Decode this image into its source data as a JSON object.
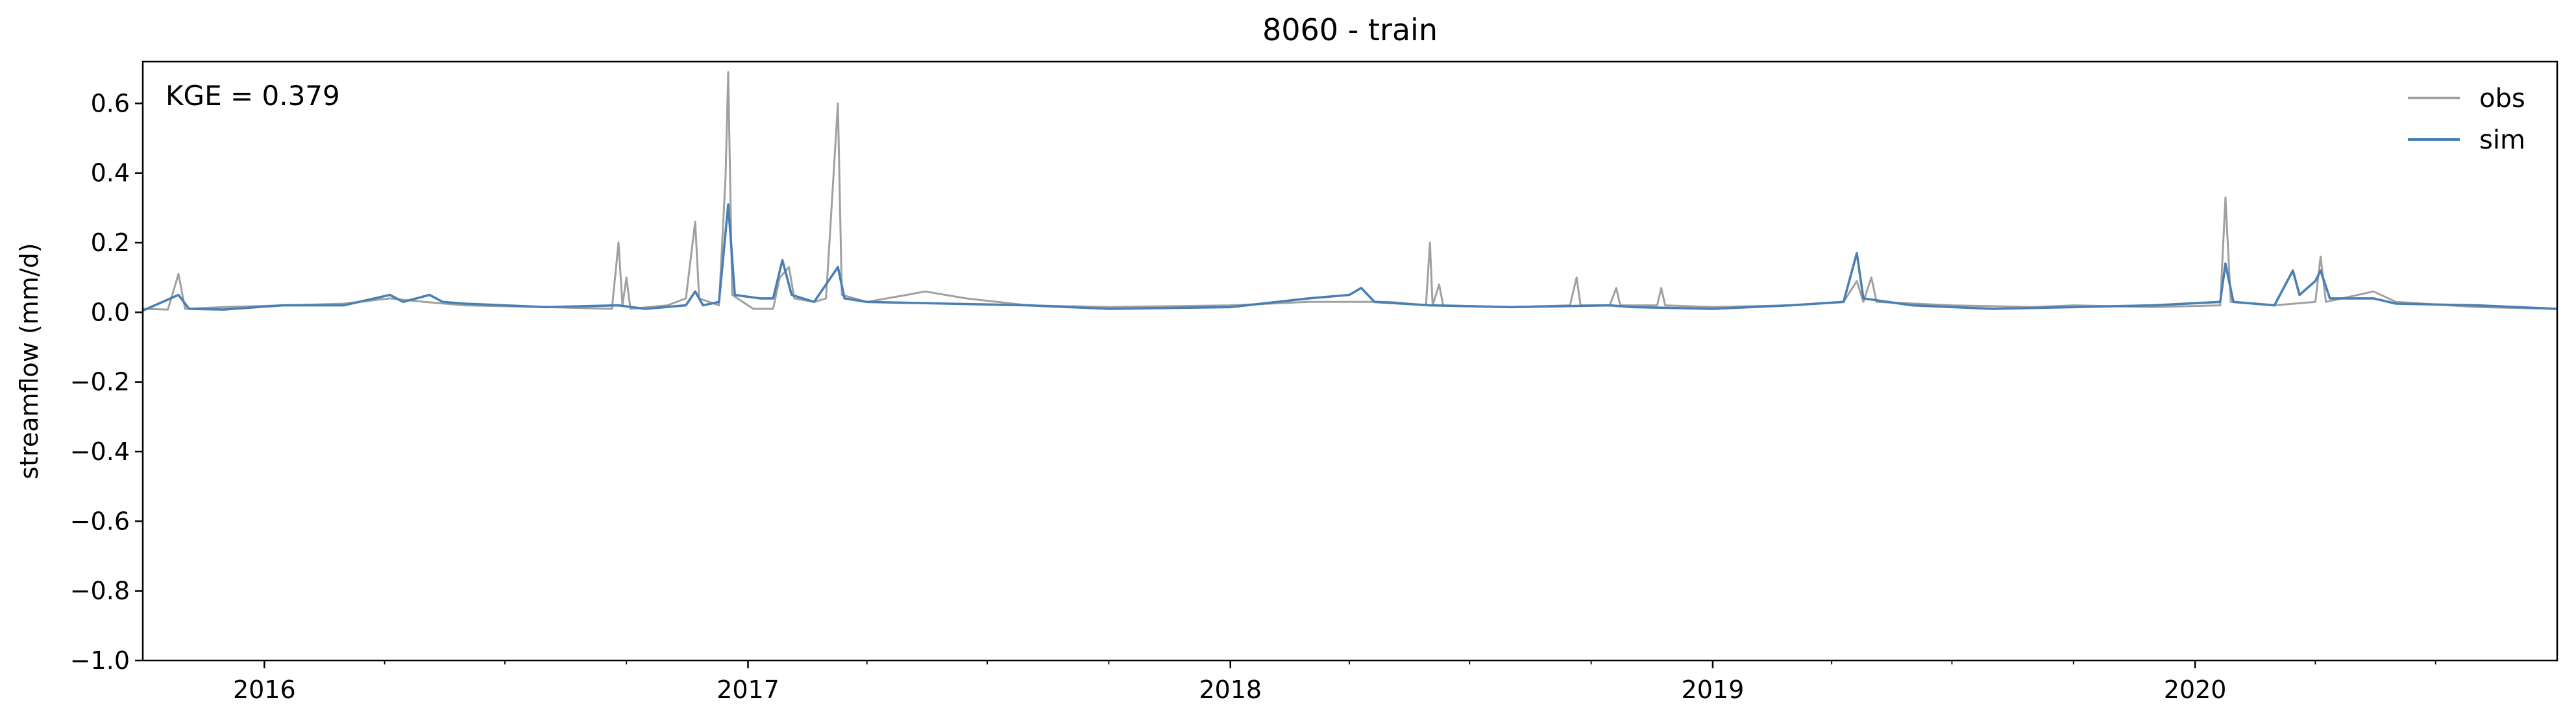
{
  "chart_data": {
    "type": "line",
    "title": "8060 - train",
    "xlabel": "",
    "ylabel": "streamflow (mm/d)",
    "annotation": "KGE = 0.379",
    "xlim": [
      "2015-10-01",
      "2020-10-01"
    ],
    "ylim": [
      -1.0,
      0.72
    ],
    "x_ticks": [
      "2016-01-01",
      "2017-01-01",
      "2018-01-01",
      "2019-01-01",
      "2020-01-01"
    ],
    "x_tick_labels": [
      "2016",
      "2017",
      "2018",
      "2019",
      "2020"
    ],
    "y_ticks": [
      -1.0,
      -0.8,
      -0.6,
      -0.4,
      -0.2,
      0.0,
      0.2,
      0.4,
      0.6
    ],
    "y_tick_labels": [
      "−1.0",
      "−0.8",
      "−0.6",
      "−0.4",
      "−0.2",
      "0.0",
      "0.2",
      "0.4",
      "0.6"
    ],
    "grid": false,
    "legend_position": "top-right",
    "series": [
      {
        "name": "obs",
        "color": "#a0a0a0",
        "points": [
          [
            "2015-10-01",
            0.01
          ],
          [
            "2015-10-20",
            0.008
          ],
          [
            "2015-10-28",
            0.11
          ],
          [
            "2015-11-02",
            0.01
          ],
          [
            "2015-12-01",
            0.015
          ],
          [
            "2016-01-15",
            0.02
          ],
          [
            "2016-03-01",
            0.025
          ],
          [
            "2016-04-05",
            0.04
          ],
          [
            "2016-05-01",
            0.03
          ],
          [
            "2016-06-01",
            0.02
          ],
          [
            "2016-08-01",
            0.015
          ],
          [
            "2016-09-20",
            0.01
          ],
          [
            "2016-09-25",
            0.2
          ],
          [
            "2016-09-28",
            0.02
          ],
          [
            "2016-10-01",
            0.1
          ],
          [
            "2016-10-04",
            0.01
          ],
          [
            "2016-11-01",
            0.02
          ],
          [
            "2016-11-15",
            0.04
          ],
          [
            "2016-11-22",
            0.26
          ],
          [
            "2016-11-25",
            0.04
          ],
          [
            "2016-12-10",
            0.02
          ],
          [
            "2016-12-15",
            0.39
          ],
          [
            "2016-12-17",
            0.69
          ],
          [
            "2016-12-20",
            0.05
          ],
          [
            "2017-01-05",
            0.01
          ],
          [
            "2017-01-20",
            0.01
          ],
          [
            "2017-01-25",
            0.1
          ],
          [
            "2017-02-01",
            0.13
          ],
          [
            "2017-02-05",
            0.04
          ],
          [
            "2017-02-20",
            0.03
          ],
          [
            "2017-03-01",
            0.04
          ],
          [
            "2017-03-10",
            0.6
          ],
          [
            "2017-03-13",
            0.05
          ],
          [
            "2017-04-01",
            0.03
          ],
          [
            "2017-05-01",
            0.05
          ],
          [
            "2017-05-15",
            0.06
          ],
          [
            "2017-06-15",
            0.04
          ],
          [
            "2017-08-01",
            0.02
          ],
          [
            "2017-10-01",
            0.015
          ],
          [
            "2018-01-01",
            0.02
          ],
          [
            "2018-03-01",
            0.03
          ],
          [
            "2018-05-01",
            0.03
          ],
          [
            "2018-05-29",
            0.02
          ],
          [
            "2018-06-01",
            0.2
          ],
          [
            "2018-06-03",
            0.02
          ],
          [
            "2018-06-08",
            0.08
          ],
          [
            "2018-06-11",
            0.02
          ],
          [
            "2018-08-01",
            0.015
          ],
          [
            "2018-09-15",
            0.02
          ],
          [
            "2018-09-20",
            0.1
          ],
          [
            "2018-09-23",
            0.02
          ],
          [
            "2018-10-15",
            0.02
          ],
          [
            "2018-10-20",
            0.07
          ],
          [
            "2018-10-23",
            0.02
          ],
          [
            "2018-11-20",
            0.02
          ],
          [
            "2018-11-23",
            0.07
          ],
          [
            "2018-11-26",
            0.02
          ],
          [
            "2019-01-01",
            0.015
          ],
          [
            "2019-03-01",
            0.02
          ],
          [
            "2019-04-10",
            0.03
          ],
          [
            "2019-04-20",
            0.09
          ],
          [
            "2019-04-25",
            0.03
          ],
          [
            "2019-05-01",
            0.1
          ],
          [
            "2019-05-05",
            0.03
          ],
          [
            "2019-07-01",
            0.02
          ],
          [
            "2019-09-01",
            0.015
          ],
          [
            "2019-10-01",
            0.02
          ],
          [
            "2019-12-01",
            0.015
          ],
          [
            "2020-01-20",
            0.02
          ],
          [
            "2020-01-24",
            0.33
          ],
          [
            "2020-01-28",
            0.03
          ],
          [
            "2020-03-01",
            0.02
          ],
          [
            "2020-04-01",
            0.03
          ],
          [
            "2020-04-05",
            0.16
          ],
          [
            "2020-04-09",
            0.03
          ],
          [
            "2020-05-15",
            0.06
          ],
          [
            "2020-06-01",
            0.03
          ],
          [
            "2020-08-01",
            0.015
          ],
          [
            "2020-10-01",
            0.01
          ]
        ]
      },
      {
        "name": "sim",
        "color": "#4a7fb5",
        "points": [
          [
            "2015-10-01",
            0.005
          ],
          [
            "2015-10-28",
            0.05
          ],
          [
            "2015-11-05",
            0.01
          ],
          [
            "2015-12-01",
            0.008
          ],
          [
            "2016-01-15",
            0.02
          ],
          [
            "2016-03-01",
            0.02
          ],
          [
            "2016-04-05",
            0.05
          ],
          [
            "2016-04-15",
            0.03
          ],
          [
            "2016-05-05",
            0.05
          ],
          [
            "2016-05-15",
            0.03
          ],
          [
            "2016-06-01",
            0.025
          ],
          [
            "2016-08-01",
            0.015
          ],
          [
            "2016-09-25",
            0.02
          ],
          [
            "2016-10-15",
            0.01
          ],
          [
            "2016-11-15",
            0.02
          ],
          [
            "2016-11-22",
            0.06
          ],
          [
            "2016-11-28",
            0.02
          ],
          [
            "2016-12-10",
            0.03
          ],
          [
            "2016-12-17",
            0.31
          ],
          [
            "2016-12-22",
            0.05
          ],
          [
            "2017-01-10",
            0.04
          ],
          [
            "2017-01-20",
            0.04
          ],
          [
            "2017-01-27",
            0.15
          ],
          [
            "2017-02-03",
            0.05
          ],
          [
            "2017-02-20",
            0.03
          ],
          [
            "2017-03-10",
            0.13
          ],
          [
            "2017-03-15",
            0.04
          ],
          [
            "2017-04-01",
            0.03
          ],
          [
            "2017-06-01",
            0.025
          ],
          [
            "2017-08-01",
            0.02
          ],
          [
            "2017-10-01",
            0.01
          ],
          [
            "2018-01-01",
            0.015
          ],
          [
            "2018-03-01",
            0.04
          ],
          [
            "2018-04-01",
            0.05
          ],
          [
            "2018-04-10",
            0.07
          ],
          [
            "2018-04-20",
            0.03
          ],
          [
            "2018-06-01",
            0.02
          ],
          [
            "2018-08-01",
            0.015
          ],
          [
            "2018-10-15",
            0.02
          ],
          [
            "2018-11-01",
            0.015
          ],
          [
            "2019-01-01",
            0.01
          ],
          [
            "2019-03-01",
            0.02
          ],
          [
            "2019-04-10",
            0.03
          ],
          [
            "2019-04-20",
            0.17
          ],
          [
            "2019-04-25",
            0.04
          ],
          [
            "2019-06-01",
            0.02
          ],
          [
            "2019-08-01",
            0.01
          ],
          [
            "2019-10-01",
            0.015
          ],
          [
            "2019-12-01",
            0.02
          ],
          [
            "2020-01-20",
            0.03
          ],
          [
            "2020-01-24",
            0.14
          ],
          [
            "2020-01-30",
            0.03
          ],
          [
            "2020-03-01",
            0.02
          ],
          [
            "2020-03-15",
            0.12
          ],
          [
            "2020-03-20",
            0.05
          ],
          [
            "2020-04-01",
            0.09
          ],
          [
            "2020-04-05",
            0.12
          ],
          [
            "2020-04-12",
            0.04
          ],
          [
            "2020-05-15",
            0.04
          ],
          [
            "2020-06-01",
            0.025
          ],
          [
            "2020-08-01",
            0.02
          ],
          [
            "2020-10-01",
            0.01
          ]
        ]
      }
    ]
  }
}
